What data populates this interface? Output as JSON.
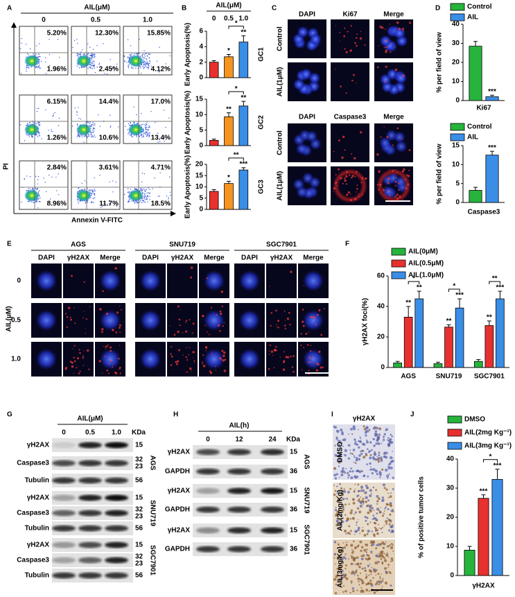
{
  "panel_labels": [
    "A",
    "B",
    "C",
    "D",
    "E",
    "F",
    "G",
    "H",
    "I",
    "J"
  ],
  "flow": {
    "title": "AIL(μM)",
    "doses": [
      "0",
      "0.5",
      "1.0"
    ],
    "upper_right": [
      [
        "5.20%",
        "12.30%",
        "15.85%"
      ],
      [
        "6.15%",
        "14.4%",
        "17.0%"
      ],
      [
        "2.84%",
        "3.61%",
        "4.71%"
      ]
    ],
    "lower_right": [
      [
        "1.96%",
        "2.45%",
        "4.12%"
      ],
      [
        "1.26%",
        "10.6%",
        "13.4%"
      ],
      [
        "8.96%",
        "11.7%",
        "18.5%"
      ]
    ],
    "y_label": "PI",
    "x_label": "Annexin V-FITC"
  },
  "panel_b": {
    "title": "AIL(μM)",
    "doses": [
      "0",
      "0.5",
      "1.0"
    ]
  },
  "if_c": {
    "columns_top": [
      "DAPI",
      "Ki67",
      "Merge"
    ],
    "rows_top": [
      "Control",
      "AIL(1μM)"
    ],
    "columns_bottom": [
      "DAPI",
      "Caspase3",
      "Merge"
    ],
    "rows_bottom": [
      "Control",
      "AIL(1μM)"
    ]
  },
  "if_e": {
    "groups": [
      "AGS",
      "SNU719",
      "SGC7901"
    ],
    "columns": [
      "DAPI",
      "γH2AX",
      "Merge"
    ],
    "rows": [
      "0",
      "0.5",
      "1.0"
    ],
    "row_title": "AIL(μM)"
  },
  "blot_g": {
    "title": "AIL(μM)",
    "lanes": [
      "0",
      "0.5",
      "1.0"
    ],
    "unit": "KDa",
    "groups": [
      {
        "name": "AGS",
        "rows": [
          {
            "protein": "γH2AX",
            "kda": [
              15
            ]
          },
          {
            "protein": "Caspase3",
            "kda": [
              32,
              23
            ]
          },
          {
            "protein": "Tubulin",
            "kda": [
              56
            ]
          }
        ]
      },
      {
        "name": "SNU719",
        "rows": [
          {
            "protein": "γH2AX",
            "kda": [
              15
            ]
          },
          {
            "protein": "Caspase3",
            "kda": [
              32,
              23
            ]
          },
          {
            "protein": "Tubulin",
            "kda": [
              56
            ]
          }
        ]
      },
      {
        "name": "SGC7901",
        "rows": [
          {
            "protein": "γH2AX",
            "kda": [
              15
            ]
          },
          {
            "protein": "Caspase3",
            "kda": [
              32,
              23
            ]
          },
          {
            "protein": "Tubulin",
            "kda": [
              56
            ]
          }
        ]
      }
    ]
  },
  "blot_h": {
    "title": "AIL(h)",
    "lanes": [
      "0",
      "12",
      "24"
    ],
    "unit": "KDa",
    "groups": [
      {
        "name": "AGS",
        "rows": [
          {
            "protein": "γH2AX",
            "kda": [
              15
            ]
          },
          {
            "protein": "GAPDH",
            "kda": [
              36
            ]
          }
        ]
      },
      {
        "name": "SNU719",
        "rows": [
          {
            "protein": "γH2AX",
            "kda": [
              15
            ]
          },
          {
            "protein": "GAPDH",
            "kda": [
              36
            ]
          }
        ]
      },
      {
        "name": "SGC7901",
        "rows": [
          {
            "protein": "γH2AX",
            "kda": [
              15
            ]
          },
          {
            "protein": "GAPDH",
            "kda": [
              36
            ]
          }
        ]
      }
    ]
  },
  "ihc_i": {
    "title": "γH2AX",
    "rows": [
      "DMSO",
      "AIL(2mg/Kg)",
      "AIL(3mg/Kg)"
    ]
  },
  "chart_data": [
    {
      "type": "bar",
      "title": "GC1",
      "y_label": "Early Apoptosis(%)",
      "categories": [
        null,
        null,
        null
      ],
      "values": [
        2.0,
        2.7,
        4.6
      ],
      "errors": [
        0.2,
        0.3,
        0.8
      ],
      "stars": [
        null,
        "*",
        "**"
      ],
      "bracket": "*",
      "colors": [
        "#e8312f",
        "#f7941d",
        "#3a8ee6"
      ],
      "ylim": [
        0,
        6
      ],
      "yticks": [
        0,
        2,
        4,
        6
      ]
    },
    {
      "type": "bar",
      "title": "GC2",
      "y_label": "Early Apoptosis(%)",
      "categories": [
        null,
        null,
        null
      ],
      "values": [
        1.7,
        9.3,
        12.8
      ],
      "errors": [
        0.4,
        1.3,
        1.5
      ],
      "stars": [
        null,
        "**",
        "**"
      ],
      "bracket": "*",
      "colors": [
        "#e8312f",
        "#f7941d",
        "#3a8ee6"
      ],
      "ylim": [
        0,
        15
      ],
      "yticks": [
        0,
        5,
        10,
        15
      ]
    },
    {
      "type": "bar",
      "title": "GC3",
      "y_label": "Early Apoptosis(%)",
      "categories": [
        null,
        null,
        null
      ],
      "values": [
        8.0,
        11.5,
        17.5
      ],
      "errors": [
        0.8,
        1.0,
        1.0
      ],
      "stars": [
        null,
        "*",
        "***"
      ],
      "bracket": "**",
      "colors": [
        "#e8312f",
        "#f7941d",
        "#3a8ee6"
      ],
      "ylim": [
        0,
        20
      ],
      "yticks": [
        0,
        5,
        10,
        15,
        20
      ]
    },
    {
      "type": "bar",
      "y_label": "% per field of view",
      "categories": [
        "Ki67"
      ],
      "series": [
        {
          "name": "Control",
          "color": "#27b43c",
          "values": [
            28.5
          ],
          "errors": [
            2.5
          ]
        },
        {
          "name": "AIL",
          "color": "#3a8ee6",
          "values": [
            2.0
          ],
          "errors": [
            0.8
          ],
          "stars": [
            "***"
          ]
        }
      ],
      "ylim": [
        0,
        40
      ],
      "yticks": [
        0,
        10,
        20,
        30,
        40
      ]
    },
    {
      "type": "bar",
      "y_label": "% per field of view",
      "categories": [
        "Caspase3"
      ],
      "series": [
        {
          "name": "Control",
          "color": "#27b43c",
          "values": [
            3.2
          ],
          "errors": [
            0.8
          ]
        },
        {
          "name": "AIL",
          "color": "#3a8ee6",
          "values": [
            12.5
          ],
          "errors": [
            1.0
          ],
          "stars": [
            "***"
          ]
        }
      ],
      "ylim": [
        0,
        15
      ],
      "yticks": [
        0,
        5,
        10,
        15
      ]
    },
    {
      "type": "bar",
      "y_label": "γH2AX foci(%)",
      "categories": [
        "AGS",
        "SNU719",
        "SGC7901"
      ],
      "series": [
        {
          "name": "AIL(0μM)",
          "color": "#27b43c",
          "values": [
            3,
            2.5,
            4
          ],
          "errors": [
            1,
            1,
            1.2
          ]
        },
        {
          "name": "AIL(0.5μM)",
          "color": "#e8312f",
          "values": [
            33,
            26.5,
            27.5
          ],
          "errors": [
            7,
            1.5,
            3
          ],
          "stars": [
            "**",
            "**",
            "**"
          ]
        },
        {
          "name": "AIL(1.0μM)",
          "color": "#3a8ee6",
          "values": [
            45,
            39,
            45
          ],
          "errors": [
            5,
            6,
            5
          ],
          "stars": [
            "**",
            "***",
            "***"
          ]
        }
      ],
      "brackets": [
        "*",
        "*",
        "**"
      ],
      "ylim": [
        0,
        60
      ],
      "yticks": [
        0,
        20,
        40,
        60
      ]
    },
    {
      "type": "bar",
      "y_label": "% of positive tumor cells",
      "categories": [
        "γH2AX"
      ],
      "series": [
        {
          "name": "DMSO",
          "color": "#27b43c",
          "values": [
            8.7
          ],
          "errors": [
            1.3
          ]
        },
        {
          "name": "AIL(2mg Kg⁻¹)",
          "color": "#e8312f",
          "values": [
            26.5
          ],
          "errors": [
            1.2
          ],
          "stars": [
            "***"
          ]
        },
        {
          "name": "AIL(3mg Kg⁻¹)",
          "color": "#3a8ee6",
          "values": [
            33
          ],
          "errors": [
            3.5
          ],
          "stars": [
            "***"
          ]
        }
      ],
      "bracket": "*",
      "ylim": [
        0,
        40
      ],
      "yticks": [
        0,
        10,
        20,
        30,
        40
      ]
    }
  ]
}
